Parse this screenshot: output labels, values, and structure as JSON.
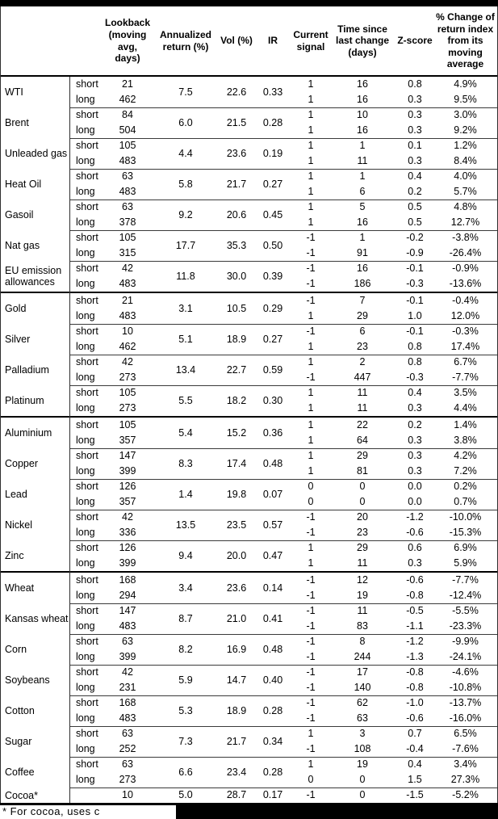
{
  "table": {
    "columns": [
      {
        "key": "name",
        "label": ""
      },
      {
        "key": "pos",
        "label": ""
      },
      {
        "key": "lookback",
        "label": "Lookback\n(moving\navg, days)"
      },
      {
        "key": "annualized",
        "label": "Annualized\nreturn (%)"
      },
      {
        "key": "vol",
        "label": "Vol (%)"
      },
      {
        "key": "ir",
        "label": "IR"
      },
      {
        "key": "signal",
        "label": "Current\nsignal"
      },
      {
        "key": "time",
        "label": "Time since\nlast change\n(days)"
      },
      {
        "key": "zscore",
        "label": "Z-score"
      },
      {
        "key": "pct",
        "label": "% Change of\nreturn index\nfrom its\nmoving\naverage"
      }
    ],
    "sections": [
      {
        "name": "energy",
        "commodities": [
          {
            "name": "WTI",
            "annualized": "7.5",
            "vol": "22.6",
            "ir": "0.33",
            "rows": [
              {
                "pos": "short",
                "lookback": "21",
                "signal": "1",
                "time": "16",
                "zscore": "0.8",
                "pct": "4.9%"
              },
              {
                "pos": "long",
                "lookback": "462",
                "signal": "1",
                "time": "16",
                "zscore": "0.3",
                "pct": "9.5%"
              }
            ]
          },
          {
            "name": "Brent",
            "annualized": "6.0",
            "vol": "21.5",
            "ir": "0.28",
            "rows": [
              {
                "pos": "short",
                "lookback": "84",
                "signal": "1",
                "time": "10",
                "zscore": "0.3",
                "pct": "3.0%"
              },
              {
                "pos": "long",
                "lookback": "504",
                "signal": "1",
                "time": "16",
                "zscore": "0.3",
                "pct": "9.2%"
              }
            ]
          },
          {
            "name": "Unleaded gas",
            "annualized": "4.4",
            "vol": "23.6",
            "ir": "0.19",
            "rows": [
              {
                "pos": "short",
                "lookback": "105",
                "signal": "1",
                "time": "1",
                "zscore": "0.1",
                "pct": "1.2%"
              },
              {
                "pos": "long",
                "lookback": "483",
                "signal": "1",
                "time": "11",
                "zscore": "0.3",
                "pct": "8.4%"
              }
            ]
          },
          {
            "name": "Heat Oil",
            "annualized": "5.8",
            "vol": "21.7",
            "ir": "0.27",
            "rows": [
              {
                "pos": "short",
                "lookback": "63",
                "signal": "1",
                "time": "1",
                "zscore": "0.4",
                "pct": "4.0%"
              },
              {
                "pos": "long",
                "lookback": "483",
                "signal": "1",
                "time": "6",
                "zscore": "0.2",
                "pct": "5.7%"
              }
            ]
          },
          {
            "name": "Gasoil",
            "annualized": "9.2",
            "vol": "20.6",
            "ir": "0.45",
            "rows": [
              {
                "pos": "short",
                "lookback": "63",
                "signal": "1",
                "time": "5",
                "zscore": "0.5",
                "pct": "4.8%"
              },
              {
                "pos": "long",
                "lookback": "378",
                "signal": "1",
                "time": "16",
                "zscore": "0.5",
                "pct": "12.7%"
              }
            ]
          },
          {
            "name": "Nat gas",
            "annualized": "17.7",
            "vol": "35.3",
            "ir": "0.50",
            "rows": [
              {
                "pos": "short",
                "lookback": "105",
                "signal": "-1",
                "time": "1",
                "zscore": "-0.2",
                "pct": "-3.8%"
              },
              {
                "pos": "long",
                "lookback": "315",
                "signal": "-1",
                "time": "91",
                "zscore": "-0.9",
                "pct": "-26.4%"
              }
            ]
          },
          {
            "name": "EU emission allowances",
            "annualized": "11.8",
            "vol": "30.0",
            "ir": "0.39",
            "rows": [
              {
                "pos": "short",
                "lookback": "42",
                "signal": "-1",
                "time": "16",
                "zscore": "-0.1",
                "pct": "-0.9%"
              },
              {
                "pos": "long",
                "lookback": "483",
                "signal": "-1",
                "time": "186",
                "zscore": "-0.3",
                "pct": "-13.6%"
              }
            ]
          }
        ]
      },
      {
        "name": "precious-metals",
        "commodities": [
          {
            "name": "Gold",
            "annualized": "3.1",
            "vol": "10.5",
            "ir": "0.29",
            "rows": [
              {
                "pos": "short",
                "lookback": "21",
                "signal": "-1",
                "time": "7",
                "zscore": "-0.1",
                "pct": "-0.4%"
              },
              {
                "pos": "long",
                "lookback": "483",
                "signal": "1",
                "time": "29",
                "zscore": "1.0",
                "pct": "12.0%"
              }
            ]
          },
          {
            "name": "Silver",
            "annualized": "5.1",
            "vol": "18.9",
            "ir": "0.27",
            "rows": [
              {
                "pos": "short",
                "lookback": "10",
                "signal": "-1",
                "time": "6",
                "zscore": "-0.1",
                "pct": "-0.3%"
              },
              {
                "pos": "long",
                "lookback": "462",
                "signal": "1",
                "time": "23",
                "zscore": "0.8",
                "pct": "17.4%"
              }
            ]
          },
          {
            "name": "Palladium",
            "annualized": "13.4",
            "vol": "22.7",
            "ir": "0.59",
            "rows": [
              {
                "pos": "short",
                "lookback": "42",
                "signal": "1",
                "time": "2",
                "zscore": "0.8",
                "pct": "6.7%"
              },
              {
                "pos": "long",
                "lookback": "273",
                "signal": "-1",
                "time": "447",
                "zscore": "-0.3",
                "pct": "-7.7%"
              }
            ]
          },
          {
            "name": "Platinum",
            "annualized": "5.5",
            "vol": "18.2",
            "ir": "0.30",
            "rows": [
              {
                "pos": "short",
                "lookback": "105",
                "signal": "1",
                "time": "11",
                "zscore": "0.4",
                "pct": "3.5%"
              },
              {
                "pos": "long",
                "lookback": "273",
                "signal": "1",
                "time": "11",
                "zscore": "0.3",
                "pct": "4.4%"
              }
            ]
          }
        ]
      },
      {
        "name": "base-metals",
        "commodities": [
          {
            "name": "Aluminium",
            "annualized": "5.4",
            "vol": "15.2",
            "ir": "0.36",
            "rows": [
              {
                "pos": "short",
                "lookback": "105",
                "signal": "1",
                "time": "22",
                "zscore": "0.2",
                "pct": "1.4%"
              },
              {
                "pos": "long",
                "lookback": "357",
                "signal": "1",
                "time": "64",
                "zscore": "0.3",
                "pct": "3.8%"
              }
            ]
          },
          {
            "name": "Copper",
            "annualized": "8.3",
            "vol": "17.4",
            "ir": "0.48",
            "rows": [
              {
                "pos": "short",
                "lookback": "147",
                "signal": "1",
                "time": "29",
                "zscore": "0.3",
                "pct": "4.2%"
              },
              {
                "pos": "long",
                "lookback": "399",
                "signal": "1",
                "time": "81",
                "zscore": "0.3",
                "pct": "7.2%"
              }
            ]
          },
          {
            "name": "Lead",
            "annualized": "1.4",
            "vol": "19.8",
            "ir": "0.07",
            "rows": [
              {
                "pos": "short",
                "lookback": "126",
                "signal": "0",
                "time": "0",
                "zscore": "0.0",
                "pct": "0.2%"
              },
              {
                "pos": "long",
                "lookback": "357",
                "signal": "0",
                "time": "0",
                "zscore": "0.0",
                "pct": "0.7%"
              }
            ]
          },
          {
            "name": "Nickel",
            "annualized": "13.5",
            "vol": "23.5",
            "ir": "0.57",
            "rows": [
              {
                "pos": "short",
                "lookback": "42",
                "signal": "-1",
                "time": "20",
                "zscore": "-1.2",
                "pct": "-10.0%"
              },
              {
                "pos": "long",
                "lookback": "336",
                "signal": "-1",
                "time": "23",
                "zscore": "-0.6",
                "pct": "-15.3%"
              }
            ]
          },
          {
            "name": "Zinc",
            "annualized": "9.4",
            "vol": "20.0",
            "ir": "0.47",
            "rows": [
              {
                "pos": "short",
                "lookback": "126",
                "signal": "1",
                "time": "29",
                "zscore": "0.6",
                "pct": "6.9%"
              },
              {
                "pos": "long",
                "lookback": "399",
                "signal": "1",
                "time": "11",
                "zscore": "0.3",
                "pct": "5.9%"
              }
            ]
          }
        ]
      },
      {
        "name": "agriculture",
        "commodities": [
          {
            "name": "Wheat",
            "annualized": "3.4",
            "vol": "23.6",
            "ir": "0.14",
            "rows": [
              {
                "pos": "short",
                "lookback": "168",
                "signal": "-1",
                "time": "12",
                "zscore": "-0.6",
                "pct": "-7.7%"
              },
              {
                "pos": "long",
                "lookback": "294",
                "signal": "-1",
                "time": "19",
                "zscore": "-0.8",
                "pct": "-12.4%"
              }
            ]
          },
          {
            "name": "Kansas wheat",
            "annualized": "8.7",
            "vol": "21.0",
            "ir": "0.41",
            "rows": [
              {
                "pos": "short",
                "lookback": "147",
                "signal": "-1",
                "time": "11",
                "zscore": "-0.5",
                "pct": "-5.5%"
              },
              {
                "pos": "long",
                "lookback": "483",
                "signal": "-1",
                "time": "83",
                "zscore": "-1.1",
                "pct": "-23.3%"
              }
            ]
          },
          {
            "name": "Corn",
            "annualized": "8.2",
            "vol": "16.9",
            "ir": "0.48",
            "rows": [
              {
                "pos": "short",
                "lookback": "63",
                "signal": "-1",
                "time": "8",
                "zscore": "-1.2",
                "pct": "-9.9%"
              },
              {
                "pos": "long",
                "lookback": "399",
                "signal": "-1",
                "time": "244",
                "zscore": "-1.3",
                "pct": "-24.1%"
              }
            ]
          },
          {
            "name": "Soybeans",
            "annualized": "5.9",
            "vol": "14.7",
            "ir": "0.40",
            "rows": [
              {
                "pos": "short",
                "lookback": "42",
                "signal": "-1",
                "time": "17",
                "zscore": "-0.8",
                "pct": "-4.6%"
              },
              {
                "pos": "long",
                "lookback": "231",
                "signal": "-1",
                "time": "140",
                "zscore": "-0.8",
                "pct": "-10.8%"
              }
            ]
          },
          {
            "name": "Cotton",
            "annualized": "5.3",
            "vol": "18.9",
            "ir": "0.28",
            "rows": [
              {
                "pos": "short",
                "lookback": "168",
                "signal": "-1",
                "time": "62",
                "zscore": "-1.0",
                "pct": "-13.7%"
              },
              {
                "pos": "long",
                "lookback": "483",
                "signal": "-1",
                "time": "63",
                "zscore": "-0.6",
                "pct": "-16.0%"
              }
            ]
          },
          {
            "name": "Sugar",
            "annualized": "7.3",
            "vol": "21.7",
            "ir": "0.34",
            "rows": [
              {
                "pos": "short",
                "lookback": "63",
                "signal": "1",
                "time": "3",
                "zscore": "0.7",
                "pct": "6.5%"
              },
              {
                "pos": "long",
                "lookback": "252",
                "signal": "-1",
                "time": "108",
                "zscore": "-0.4",
                "pct": "-7.6%"
              }
            ]
          },
          {
            "name": "Coffee",
            "annualized": "6.6",
            "vol": "23.4",
            "ir": "0.28",
            "rows": [
              {
                "pos": "short",
                "lookback": "63",
                "signal": "1",
                "time": "19",
                "zscore": "0.4",
                "pct": "3.4%"
              },
              {
                "pos": "long",
                "lookback": "273",
                "signal": "0",
                "time": "0",
                "zscore": "1.5",
                "pct": "27.3%"
              }
            ]
          },
          {
            "name": "Cocoa*",
            "annualized": "5.0",
            "vol": "28.7",
            "ir": "0.17",
            "rows": [
              {
                "pos": "",
                "lookback": "10",
                "signal": "-1",
                "time": "0",
                "zscore": "-1.5",
                "pct": "-5.2%"
              }
            ]
          }
        ]
      }
    ]
  },
  "footnote": {
    "text": "* For cocoa, uses c",
    "redacted": true
  },
  "colors": {
    "thick_line": "#000000",
    "thin_line": "#3a3a3a",
    "redaction": "#000000",
    "background": "#ffffff",
    "text": "#000000"
  }
}
